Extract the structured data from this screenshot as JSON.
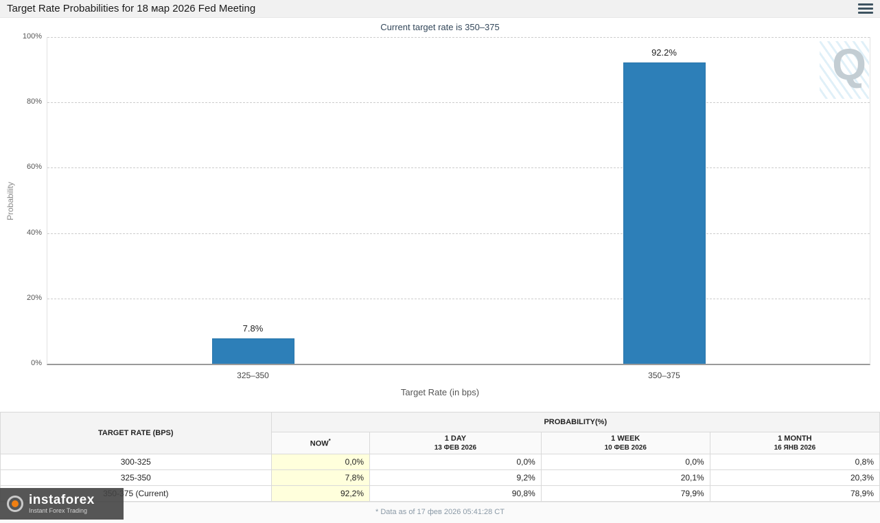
{
  "title": "Target Rate Probabilities for 18 мар 2026 Fed Meeting",
  "subtitle": "Current target rate is 350–375",
  "watermark": {
    "letter": "Q"
  },
  "chart_data": {
    "type": "bar",
    "categories": [
      "325–350",
      "350–375"
    ],
    "values": [
      7.8,
      92.2
    ],
    "labels": [
      "7.8%",
      "92.2%"
    ],
    "title": "Target Rate Probabilities for 18 мар 2026 Fed Meeting",
    "xlabel": "Target Rate (in bps)",
    "ylabel": "Probability",
    "ylim": [
      0,
      100
    ],
    "yticks": [
      "0%",
      "20%",
      "40%",
      "60%",
      "80%",
      "100%"
    ],
    "bar_color": "#2d7fb8",
    "grid": "dashed-horizontal",
    "legend": "none"
  },
  "table": {
    "row_header": "TARGET RATE (BPS)",
    "col_group_header": "PROBABILITY(%)",
    "now_asterisk": "*",
    "columns": [
      {
        "label": "NOW",
        "sub": ""
      },
      {
        "label": "1 DAY",
        "sub": "13 ФЕВ 2026"
      },
      {
        "label": "1 WEEK",
        "sub": "10 ФЕВ 2026"
      },
      {
        "label": "1 MONTH",
        "sub": "16 ЯНВ 2026"
      }
    ],
    "rows": [
      {
        "rate": "300-325",
        "now": "0,0%",
        "day": "0,0%",
        "week": "0,0%",
        "month": "0,8%"
      },
      {
        "rate": "325-350",
        "now": "7,8%",
        "day": "9,2%",
        "week": "20,1%",
        "month": "20,3%"
      },
      {
        "rate": "350-375 (Current)",
        "now": "92,2%",
        "day": "90,8%",
        "week": "79,9%",
        "month": "78,9%"
      }
    ],
    "footnote": "* Data as of 17 фев 2026 05:41:28 CT"
  },
  "logo": {
    "name": "instaforex",
    "tagline": "Instant Forex Trading"
  }
}
